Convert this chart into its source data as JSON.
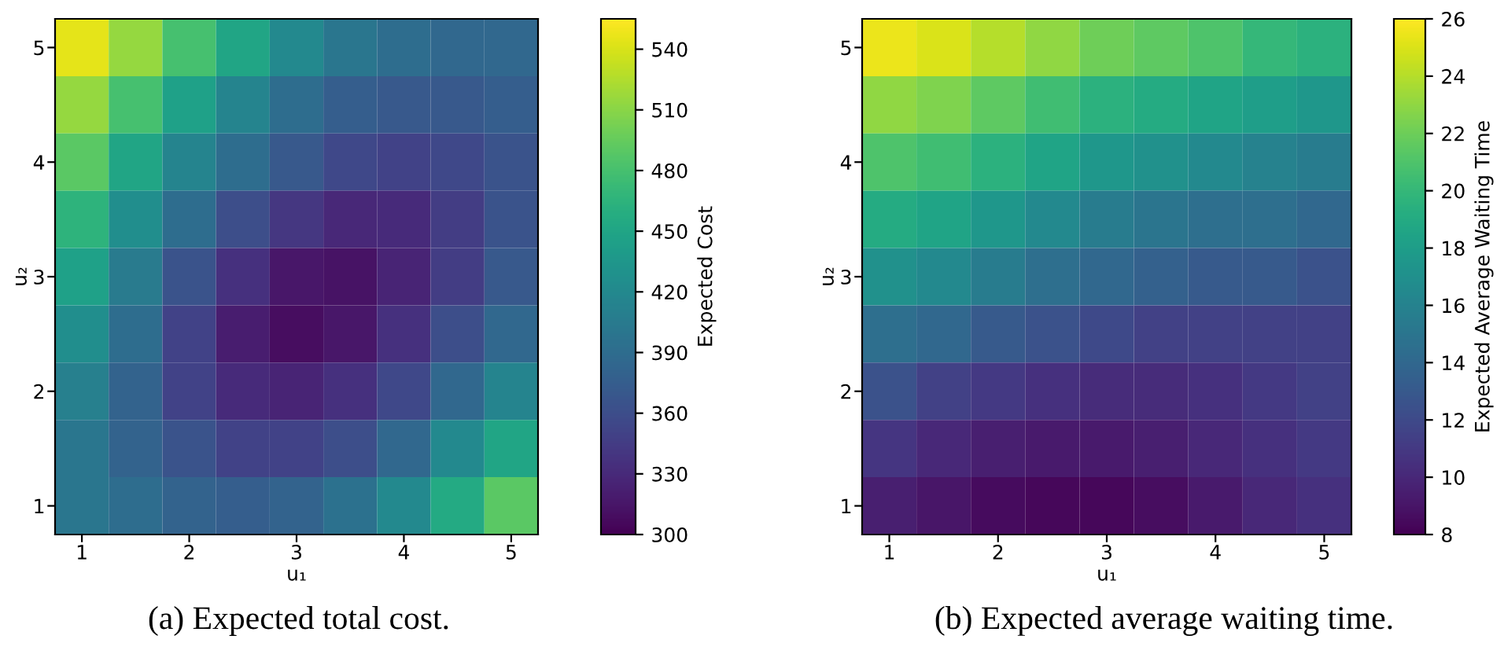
{
  "chart_data": [
    {
      "type": "heatmap",
      "xlabel": "u₁",
      "ylabel": "u₂",
      "clabel": "Expected Cost",
      "categories": [
        "1",
        null,
        "2",
        null,
        "3",
        null,
        "4",
        null,
        "5"
      ],
      "y_categories": [
        "5",
        null,
        "4",
        null,
        "3",
        null,
        "2",
        null,
        "1"
      ],
      "cells": [
        [
          545,
          515,
          480,
          450,
          420,
          400,
          390,
          385,
          385
        ],
        [
          515,
          480,
          445,
          415,
          390,
          375,
          370,
          370,
          375
        ],
        [
          490,
          450,
          415,
          390,
          370,
          355,
          350,
          355,
          365
        ],
        [
          465,
          425,
          390,
          360,
          340,
          328,
          330,
          345,
          365
        ],
        [
          445,
          405,
          365,
          335,
          315,
          312,
          325,
          345,
          370
        ],
        [
          425,
          390,
          350,
          320,
          308,
          315,
          335,
          360,
          385
        ],
        [
          410,
          380,
          350,
          330,
          325,
          335,
          355,
          385,
          415
        ],
        [
          400,
          380,
          365,
          350,
          350,
          360,
          385,
          420,
          450
        ],
        [
          400,
          390,
          380,
          375,
          380,
          395,
          420,
          455,
          490
        ]
      ],
      "clim": [
        300,
        555
      ],
      "cticks": [
        300,
        330,
        360,
        390,
        420,
        450,
        480,
        510,
        540
      ],
      "annotations": [
        "(a) Expected total cost."
      ]
    },
    {
      "type": "heatmap",
      "xlabel": "u₁",
      "ylabel": "u₂",
      "clabel": "Expected Average Waiting Time",
      "categories": [
        "1",
        null,
        "2",
        null,
        "3",
        null,
        "4",
        null,
        "5"
      ],
      "y_categories": [
        "5",
        null,
        "4",
        null,
        "3",
        null,
        "2",
        null,
        "1"
      ],
      "cells": [
        [
          25.5,
          25,
          24,
          23,
          22,
          21.5,
          21,
          20,
          19.5
        ],
        [
          23,
          22.5,
          21.5,
          20.5,
          19.5,
          19,
          18.5,
          18,
          17.5
        ],
        [
          21,
          20.5,
          19.5,
          18.5,
          17.5,
          17,
          16.5,
          16,
          15.5
        ],
        [
          19,
          18.5,
          17.5,
          16.5,
          15.5,
          15,
          14.5,
          14.5,
          14
        ],
        [
          17,
          16.5,
          15.5,
          14.5,
          14,
          13.5,
          13,
          13,
          12.5
        ],
        [
          14.5,
          14,
          13,
          12.5,
          12,
          11.5,
          11.5,
          11.5,
          11.5
        ],
        [
          12.5,
          11.5,
          11,
          10.5,
          10.2,
          10.2,
          10.5,
          11,
          11.5
        ],
        [
          10.8,
          10,
          9.5,
          9.2,
          9.2,
          9.5,
          10,
          10.5,
          11
        ],
        [
          9.5,
          9,
          8.5,
          8.3,
          8.3,
          8.6,
          9.2,
          10,
          10.5
        ]
      ],
      "clim": [
        8,
        26
      ],
      "cticks": [
        8,
        10,
        12,
        14,
        16,
        18,
        20,
        22,
        24,
        26
      ],
      "annotations": [
        "(b) Expected average waiting time."
      ]
    }
  ]
}
